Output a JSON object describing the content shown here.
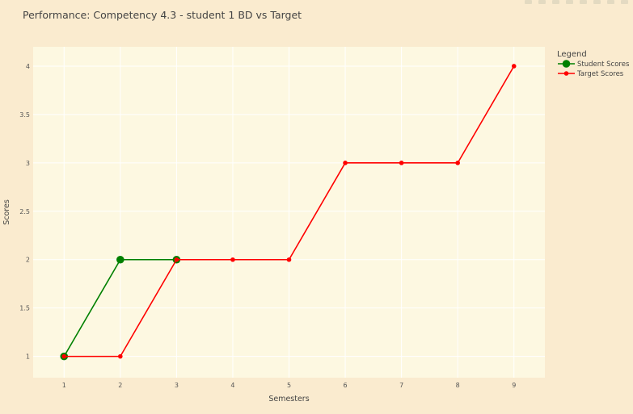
{
  "colors": {
    "page_bg": "#faebcf",
    "plot_bg": "#fdf8e1",
    "grid": "#ffffff",
    "student": "#008000",
    "target": "#ff0000"
  },
  "chart_data": {
    "type": "line",
    "title": "Performance: Competency 4.3 - student 1 BD vs Target",
    "xlabel": "Semesters",
    "ylabel": "Scores",
    "xlim": [
      0.45,
      9.55
    ],
    "ylim": [
      0.78,
      4.2
    ],
    "xticks": [
      1,
      2,
      3,
      4,
      5,
      6,
      7,
      8,
      9
    ],
    "xtick_labels": [
      "1",
      "2",
      "3",
      "4",
      "5",
      "6",
      "7",
      "8",
      "9"
    ],
    "yticks": [
      1,
      1.5,
      2,
      2.5,
      3,
      3.5,
      4
    ],
    "ytick_labels": [
      "1",
      "1.5",
      "2",
      "2.5",
      "3",
      "3.5",
      "4"
    ],
    "grid": true,
    "legend": {
      "title": "Legend",
      "placement": "right"
    },
    "series": [
      {
        "name": "Student Scores",
        "color": "#008000",
        "marker": "large-circle",
        "x": [
          1,
          2,
          3
        ],
        "y": [
          1,
          2,
          2
        ]
      },
      {
        "name": "Target Scores",
        "color": "#ff0000",
        "marker": "small-circle",
        "x": [
          1,
          2,
          3,
          4,
          5,
          6,
          7,
          8,
          9
        ],
        "y": [
          1,
          1,
          2,
          2,
          2,
          3,
          3,
          3,
          4
        ]
      }
    ]
  }
}
